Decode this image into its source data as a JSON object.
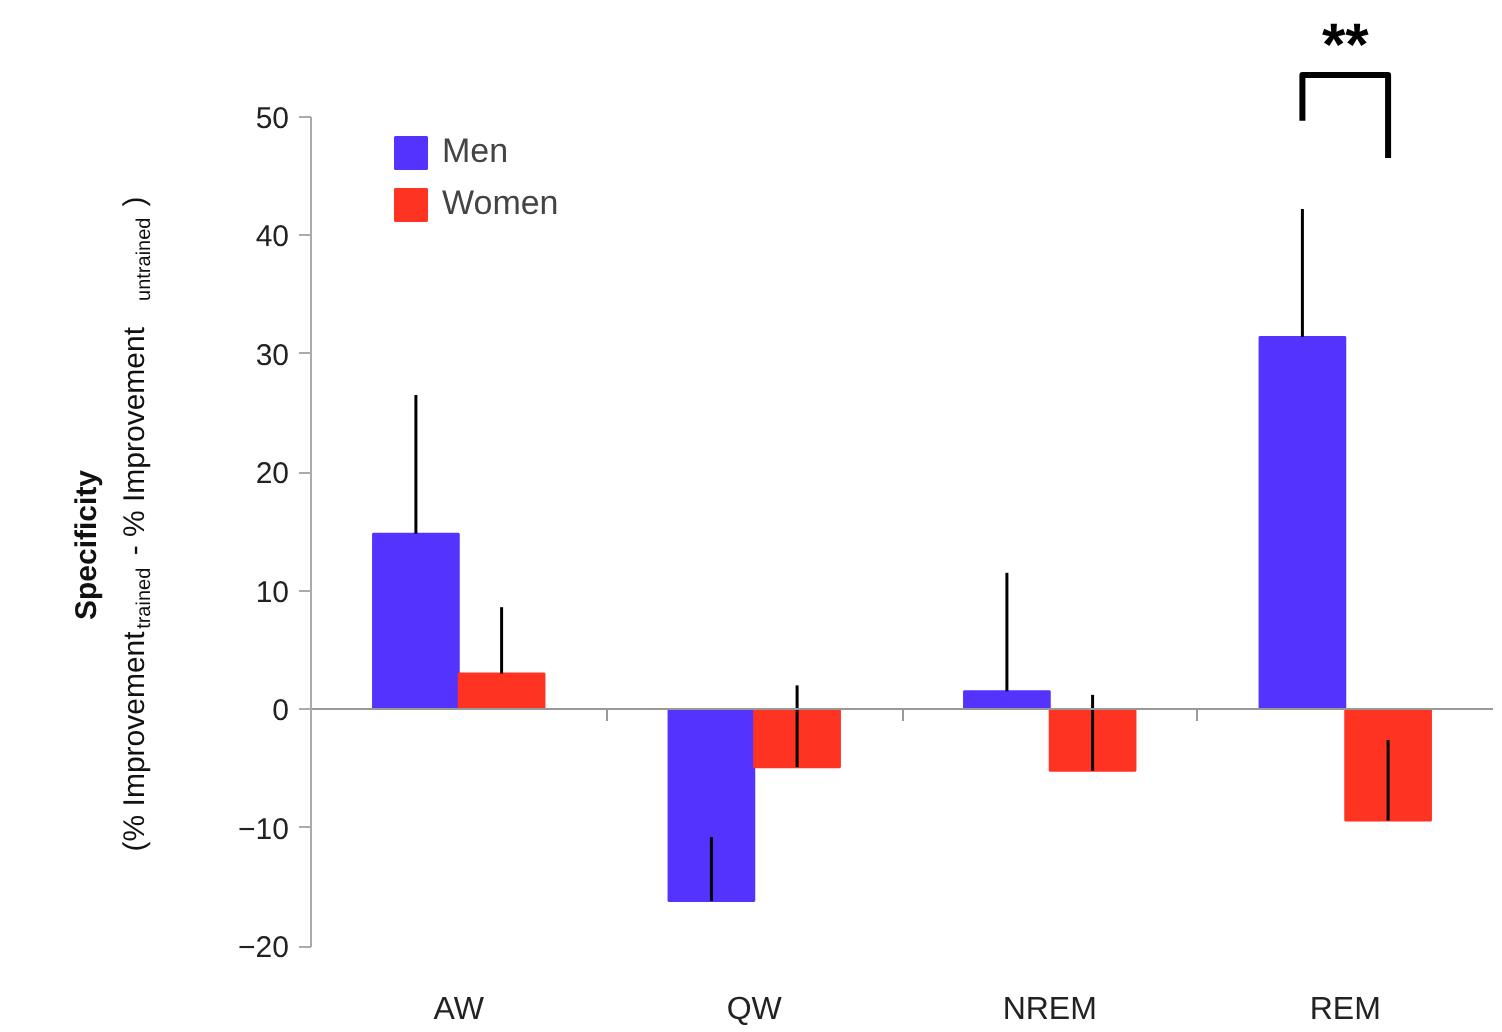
{
  "chart_data": {
    "type": "bar",
    "ylabel": "Specificity\n(% Improvement$_{trained}$ - % Improvement$_{untrained}$)",
    "categories": [
      "AW",
      "QW",
      "NREM",
      "REM"
    ],
    "series": [
      {
        "name": "Men",
        "color": "#5533ff",
        "values": [
          14.8,
          -16.2,
          1.5,
          31.4
        ],
        "errors": [
          [
            14.8,
            26.5
          ],
          [
            -16.2,
            -10.8
          ],
          [
            1.5,
            11.5
          ],
          [
            31.4,
            42.2
          ]
        ]
      },
      {
        "name": "Women",
        "color": "#ff3322",
        "values": [
          3.0,
          -4.9,
          -5.2,
          -9.4
        ],
        "errors": [
          [
            3.0,
            8.6
          ],
          [
            -4.9,
            2.0
          ],
          [
            -5.2,
            1.2
          ],
          [
            -9.4,
            -2.6
          ]
        ]
      }
    ],
    "ylim": [
      -20,
      50
    ],
    "yticks": [
      -20,
      -10,
      0,
      10,
      20,
      30,
      40,
      50
    ],
    "annotations": [
      "**"
    ],
    "legend": "top left"
  }
}
